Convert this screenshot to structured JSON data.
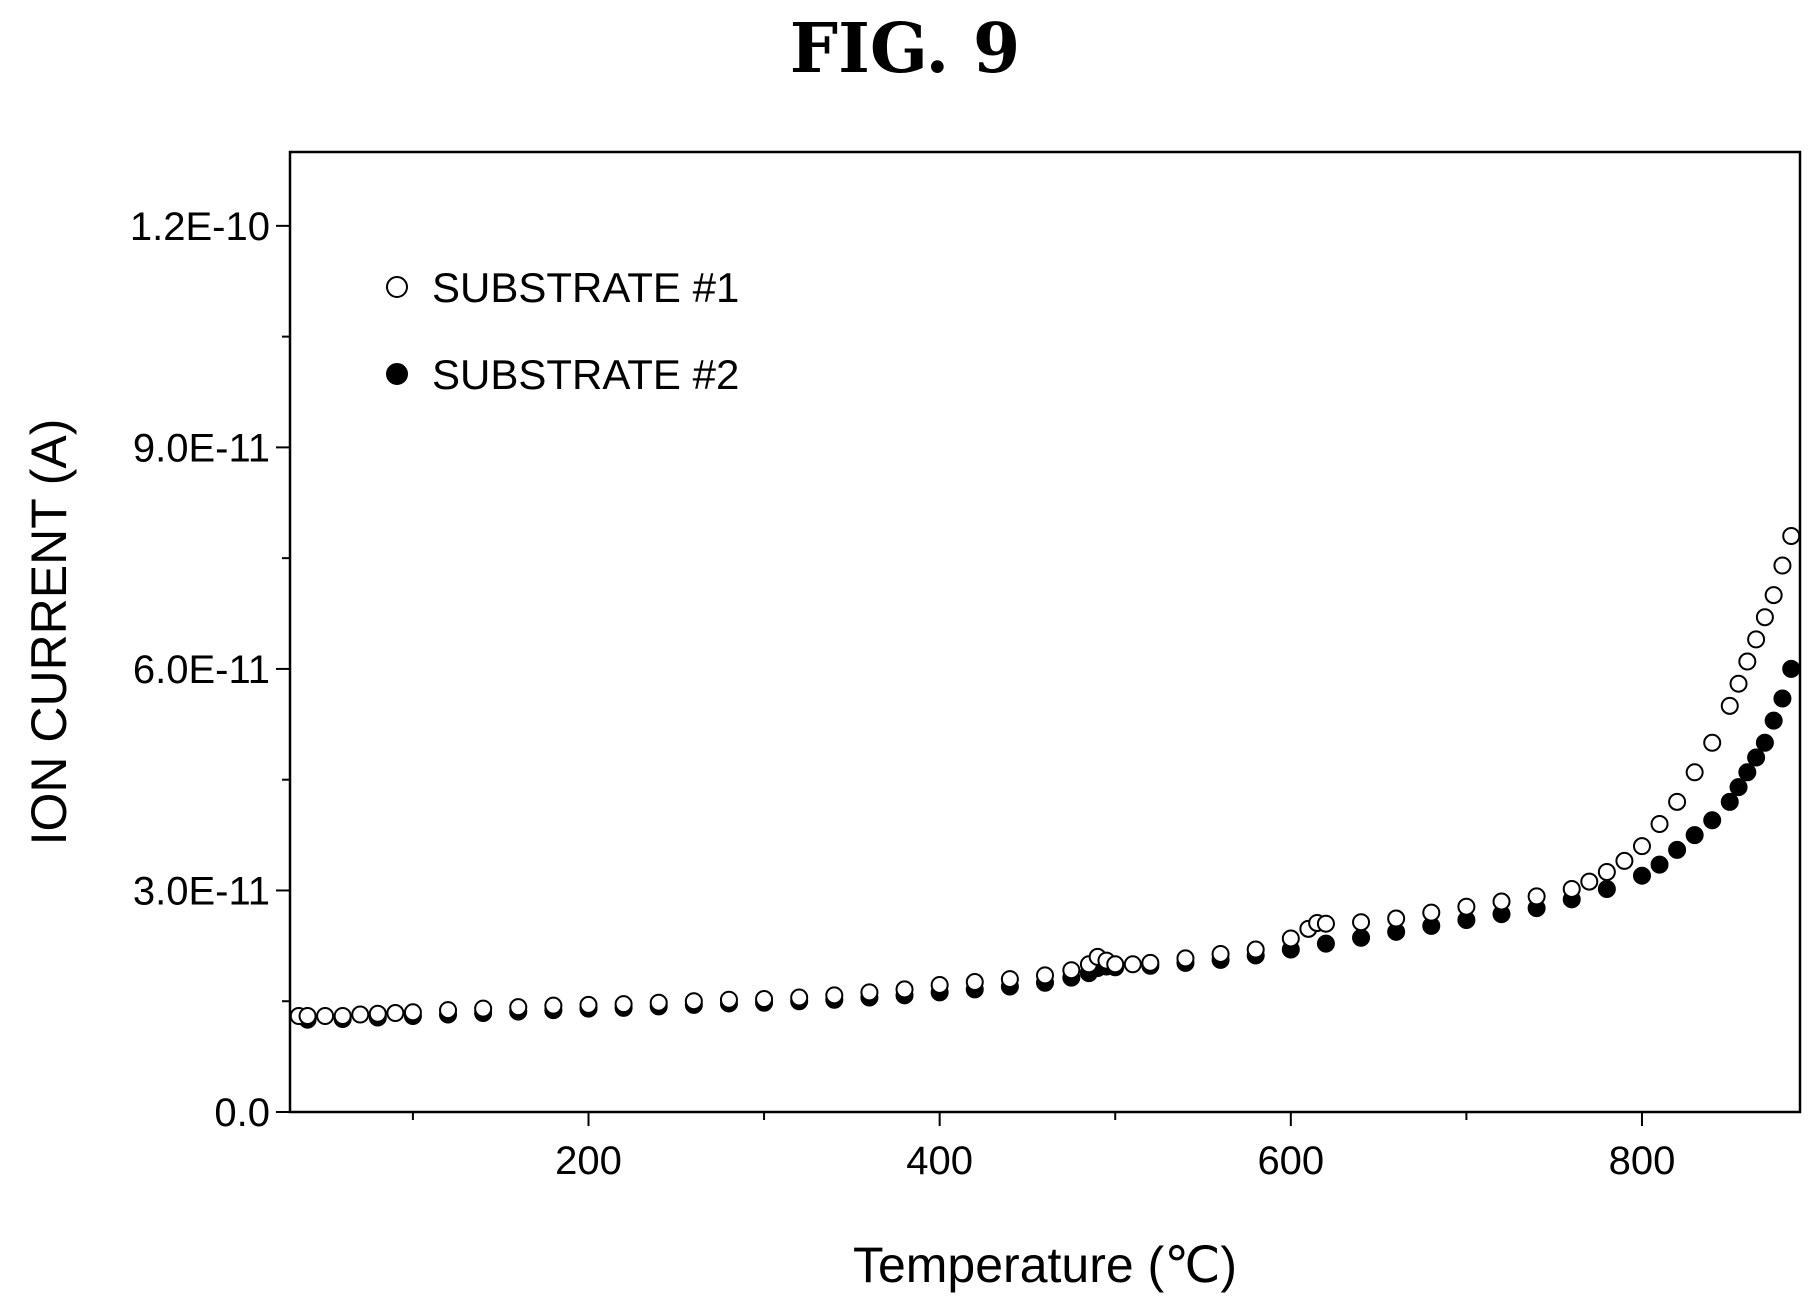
{
  "figure_label": "FIG. 9",
  "chart_data": {
    "type": "scatter",
    "title": "",
    "xlabel": "Temperature (℃)",
    "ylabel": "ION CURRENT (A)",
    "xlim": [
      30,
      890
    ],
    "ylim": [
      0,
      1.3e-10
    ],
    "x_ticks": [
      200,
      400,
      600,
      800
    ],
    "x_tick_labels": [
      "200",
      "400",
      "600",
      "800"
    ],
    "x_minor_ticks": [
      100,
      300,
      500,
      700
    ],
    "y_ticks": [
      0,
      3e-11,
      6e-11,
      9e-11,
      1.2e-10
    ],
    "y_tick_labels": [
      "0.0",
      "3.0E-11",
      "6.0E-11",
      "9.0E-11",
      "1.2E-10"
    ],
    "y_minor_ticks": [
      1.5e-11,
      4.5e-11,
      7.5e-11,
      1.05e-10
    ],
    "grid": false,
    "legend_position": "top-left",
    "series": [
      {
        "name": "SUBSTRATE #1",
        "marker": "open-circle",
        "color": "#000000",
        "x": [
          35,
          40,
          50,
          60,
          70,
          80,
          90,
          100,
          120,
          140,
          160,
          180,
          200,
          220,
          240,
          260,
          280,
          300,
          320,
          340,
          360,
          380,
          400,
          420,
          440,
          460,
          475,
          485,
          490,
          495,
          500,
          510,
          520,
          540,
          560,
          580,
          600,
          610,
          615,
          620,
          640,
          660,
          680,
          700,
          720,
          740,
          760,
          770,
          780,
          790,
          800,
          810,
          820,
          830,
          840,
          850,
          855,
          860,
          865,
          870,
          875,
          880,
          885
        ],
        "y": [
          1.3e-11,
          1.3e-11,
          1.3e-11,
          1.3e-11,
          1.32e-11,
          1.33e-11,
          1.34e-11,
          1.35e-11,
          1.38e-11,
          1.4e-11,
          1.42e-11,
          1.44e-11,
          1.45e-11,
          1.46e-11,
          1.48e-11,
          1.5e-11,
          1.52e-11,
          1.53e-11,
          1.55e-11,
          1.58e-11,
          1.62e-11,
          1.66e-11,
          1.72e-11,
          1.76e-11,
          1.8e-11,
          1.85e-11,
          1.92e-11,
          2e-11,
          2.1e-11,
          2.05e-11,
          2e-11,
          2e-11,
          2.02e-11,
          2.08e-11,
          2.14e-11,
          2.2e-11,
          2.35e-11,
          2.48e-11,
          2.56e-11,
          2.55e-11,
          2.57e-11,
          2.62e-11,
          2.7e-11,
          2.78e-11,
          2.85e-11,
          2.92e-11,
          3.02e-11,
          3.12e-11,
          3.25e-11,
          3.4e-11,
          3.6e-11,
          3.9e-11,
          4.2e-11,
          4.6e-11,
          5e-11,
          5.5e-11,
          5.8e-11,
          6.1e-11,
          6.4e-11,
          6.7e-11,
          7e-11,
          7.4e-11,
          7.8e-11
        ]
      },
      {
        "name": "SUBSTRATE #2",
        "marker": "filled-circle",
        "color": "#000000",
        "x": [
          40,
          60,
          80,
          100,
          120,
          140,
          160,
          180,
          200,
          220,
          240,
          260,
          280,
          300,
          320,
          340,
          360,
          380,
          400,
          420,
          440,
          460,
          475,
          485,
          490,
          495,
          500,
          520,
          540,
          560,
          580,
          600,
          620,
          640,
          660,
          680,
          700,
          720,
          740,
          760,
          780,
          800,
          810,
          820,
          830,
          840,
          850,
          855,
          860,
          865,
          870,
          875,
          880,
          885
        ],
        "y": [
          1.25e-11,
          1.26e-11,
          1.28e-11,
          1.3e-11,
          1.32e-11,
          1.34e-11,
          1.36e-11,
          1.38e-11,
          1.4e-11,
          1.41e-11,
          1.43e-11,
          1.45e-11,
          1.47e-11,
          1.48e-11,
          1.5e-11,
          1.52e-11,
          1.55e-11,
          1.58e-11,
          1.62e-11,
          1.66e-11,
          1.7e-11,
          1.75e-11,
          1.82e-11,
          1.88e-11,
          1.95e-11,
          1.97e-11,
          1.96e-11,
          1.98e-11,
          2.02e-11,
          2.06e-11,
          2.12e-11,
          2.2e-11,
          2.28e-11,
          2.36e-11,
          2.44e-11,
          2.52e-11,
          2.6e-11,
          2.68e-11,
          2.76e-11,
          2.88e-11,
          3.02e-11,
          3.2e-11,
          3.35e-11,
          3.55e-11,
          3.75e-11,
          3.95e-11,
          4.2e-11,
          4.4e-11,
          4.6e-11,
          4.8e-11,
          5e-11,
          5.3e-11,
          5.6e-11,
          6e-11
        ]
      }
    ]
  }
}
